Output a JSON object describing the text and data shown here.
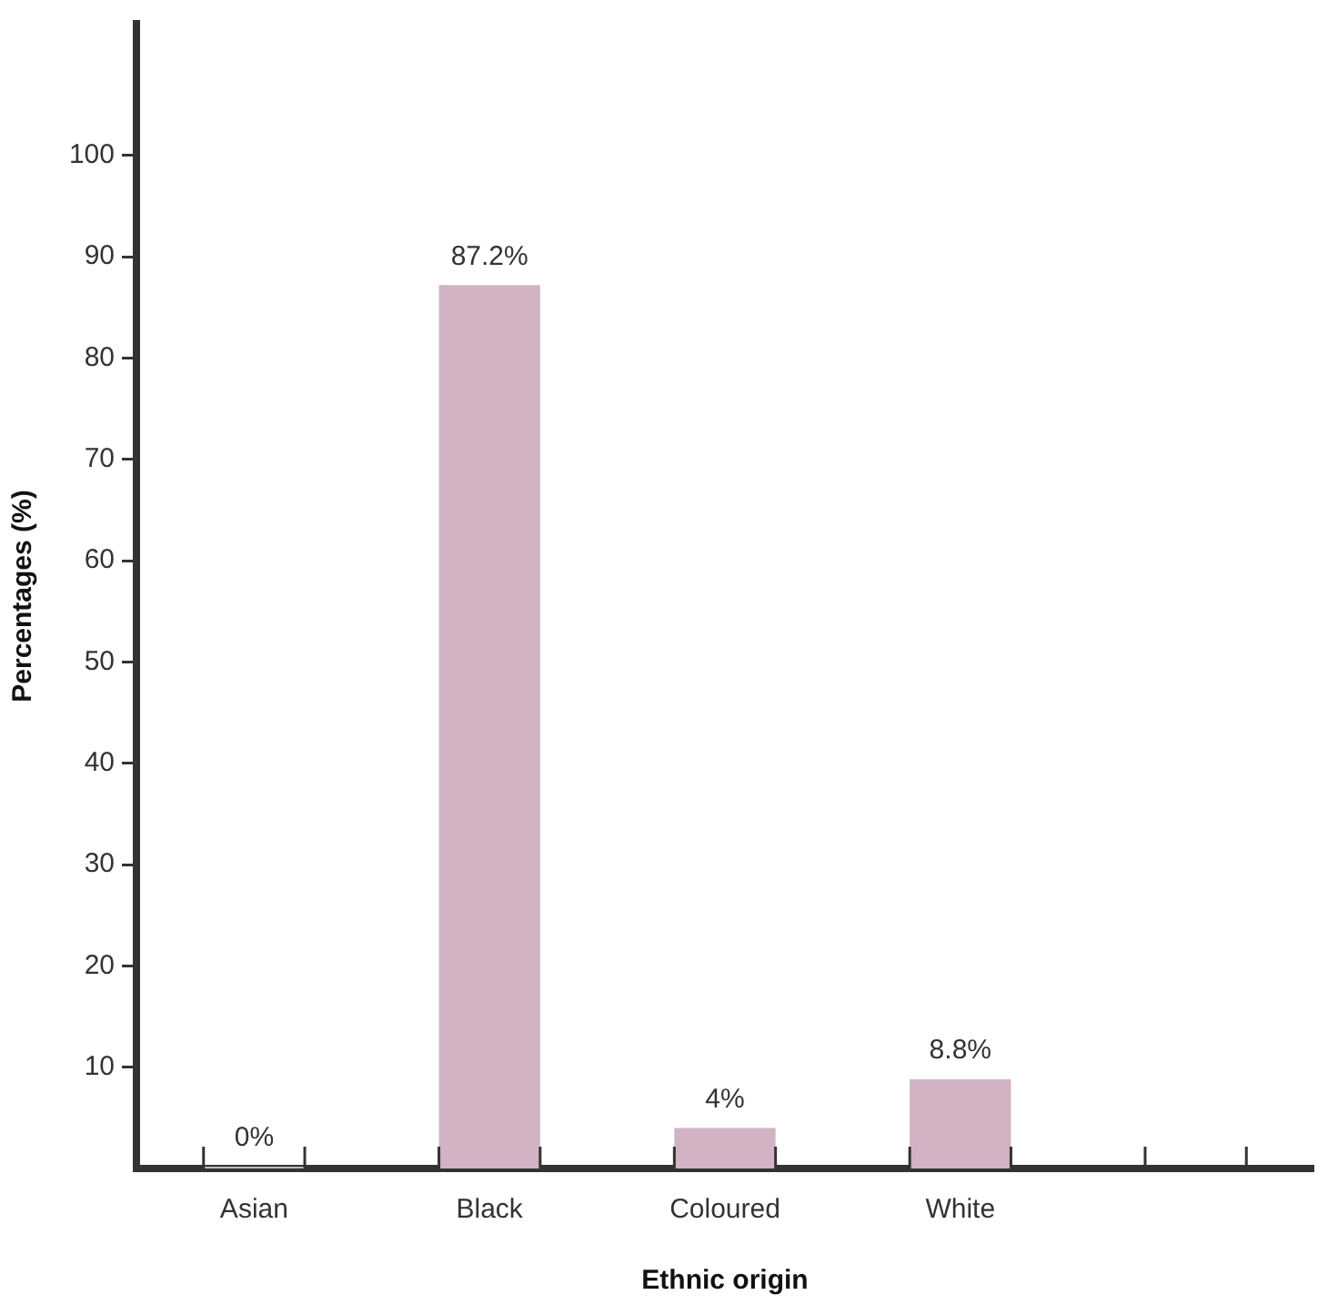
{
  "chart_data": {
    "type": "bar",
    "xlabel": "Ethnic origin",
    "ylabel": "Percentages (%)",
    "categories": [
      "Asian",
      "Black",
      "Coloured",
      "White",
      null
    ],
    "values": [
      0,
      87.2,
      4,
      8.8,
      null
    ],
    "value_labels": [
      "0%",
      "87.2%",
      "4%",
      "8.8%",
      null
    ],
    "color": "#d1b3c4",
    "ylim": [
      0,
      113
    ],
    "yticks": [
      10,
      20,
      30,
      40,
      50,
      60,
      70,
      80,
      90,
      100
    ],
    "grid": false,
    "legend": false
  }
}
